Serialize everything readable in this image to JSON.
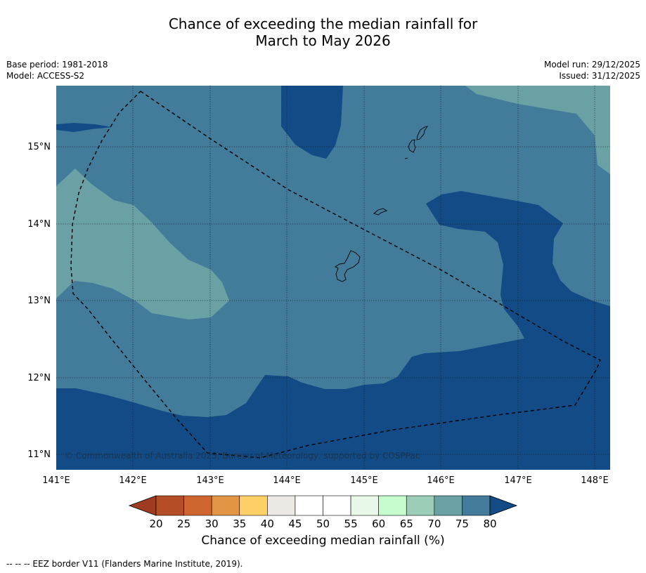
{
  "title_line1": "Chance of exceeding the median rainfall for",
  "title_line2": "March to May 2026",
  "meta_left": {
    "base_period": "Base period: 1981-2018",
    "model": "Model: ACCESS-S2"
  },
  "meta_right": {
    "model_run": "Model run: 29/12/2025",
    "issued": "Issued: 31/12/2025"
  },
  "copyright": "© Commonwealth of Australia 2025, Bureau of Meteorology, supported by COSPPac",
  "lon_ticks": [
    "141°E",
    "142°E",
    "143°E",
    "144°E",
    "145°E",
    "146°E",
    "147°E",
    "148°E"
  ],
  "lat_ticks": [
    "15°N",
    "14°N",
    "13°N",
    "12°N",
    "11°N"
  ],
  "colorbar": {
    "title": "Chance of exceeding median rainfall (%)",
    "labels": [
      "20",
      "25",
      "30",
      "35",
      "40",
      "45",
      "50",
      "55",
      "60",
      "65",
      "70",
      "75",
      "80"
    ],
    "colors": [
      "#b54d27",
      "#d0662f",
      "#e39545",
      "#fdcf67",
      "#ece9e5",
      "#ffffff",
      "#ffffff",
      "#e7f7e8",
      "#c5fbcd",
      "#9ccdb7",
      "#6aa1a5",
      "#437b9b"
    ],
    "under_color": "#9e3b21",
    "over_color": "#134b86"
  },
  "colors": {
    "c70_75": "#6aa1a5",
    "c75_80": "#437b9b",
    "c80plus": "#134b86"
  },
  "footer": "--  --  -- EEZ border V11 (Flanders Marine Institute, 2019)."
}
